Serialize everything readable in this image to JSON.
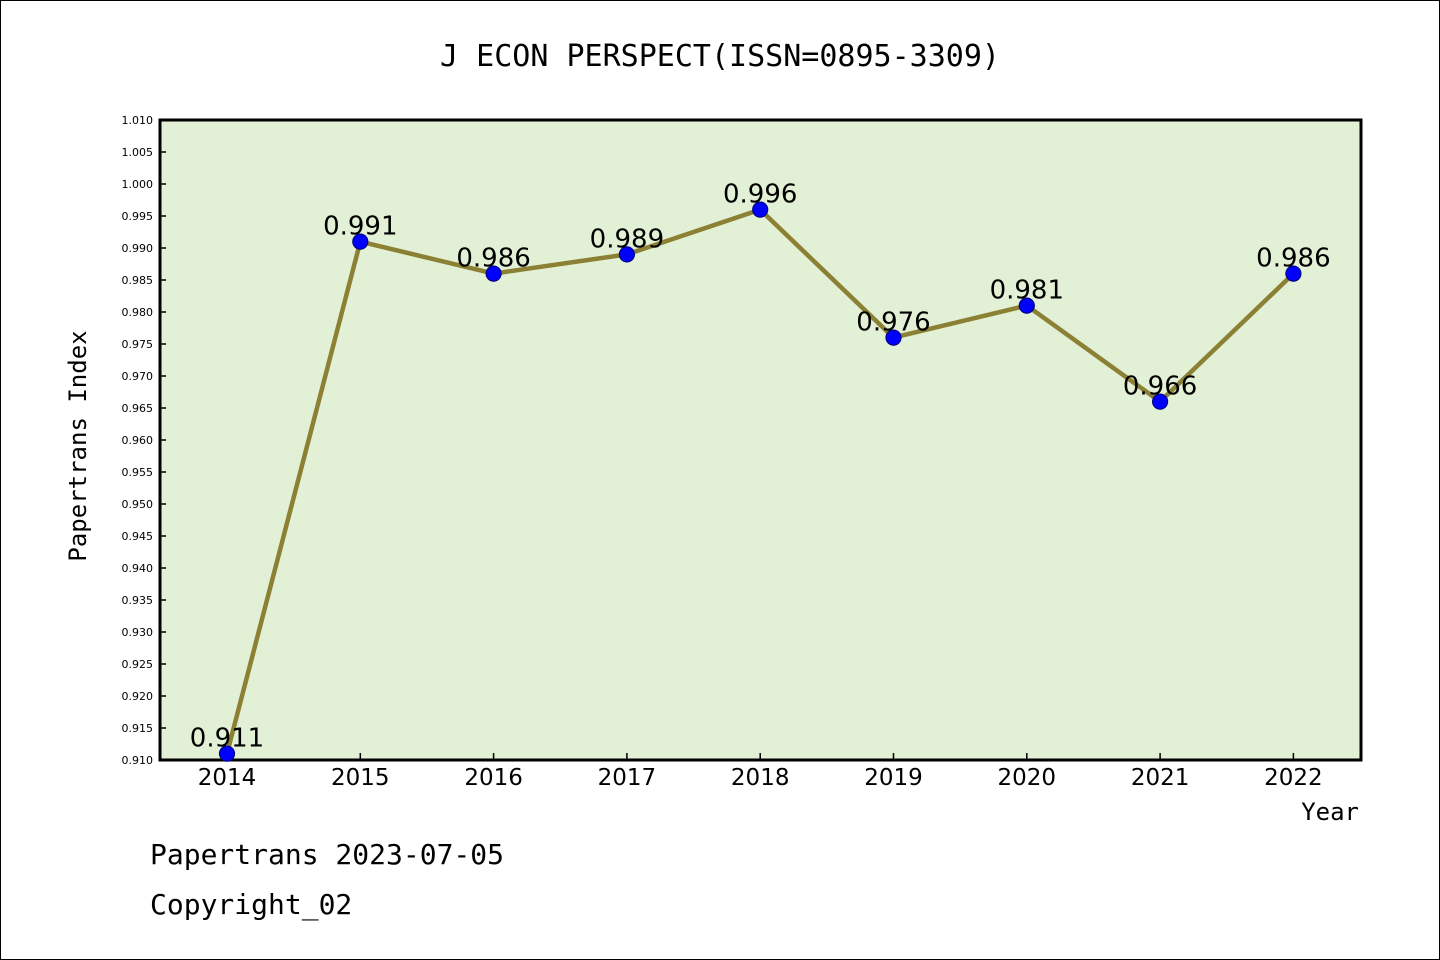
{
  "chart_data": {
    "type": "line",
    "title": "J ECON PERSPECT(ISSN=0895-3309)",
    "xlabel": "Year",
    "ylabel": "Papertrans Index",
    "categories": [
      "2014",
      "2015",
      "2016",
      "2017",
      "2018",
      "2019",
      "2020",
      "2021",
      "2022"
    ],
    "values": [
      0.911,
      0.991,
      0.986,
      0.989,
      0.996,
      0.976,
      0.981,
      0.966,
      0.986
    ],
    "data_labels": [
      "0.911",
      "0.991",
      "0.986",
      "0.989",
      "0.996",
      "0.976",
      "0.981",
      "0.966",
      "0.986"
    ],
    "ylim": [
      0.91,
      1.01
    ],
    "yticks": [
      "0.910",
      "0.915",
      "0.920",
      "0.925",
      "0.930",
      "0.935",
      "0.940",
      "0.945",
      "0.950",
      "0.955",
      "0.960",
      "0.965",
      "0.970",
      "0.975",
      "0.980",
      "0.985",
      "0.990",
      "0.995",
      "1.000",
      "1.005",
      "1.010"
    ],
    "grid": false,
    "legend": "none",
    "colors": {
      "plot_background": "#e2f0d5",
      "line": "#8b8033",
      "marker": "#0000ff",
      "marker_edge": "#00008b"
    }
  },
  "footer": {
    "line1": "Papertrans 2023-07-05",
    "line2": "Copyright_02"
  }
}
